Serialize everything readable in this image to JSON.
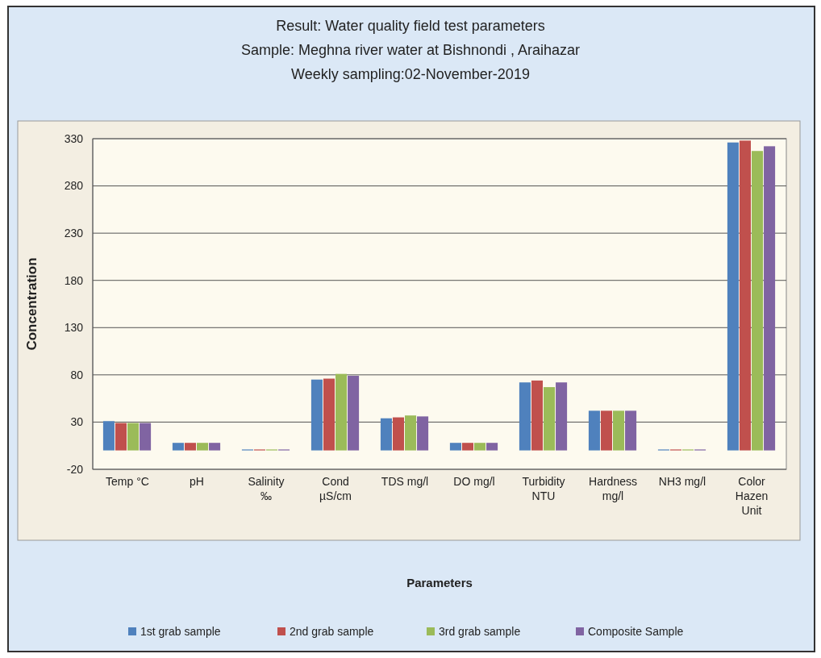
{
  "chart_data": {
    "type": "bar",
    "title": "Result: Water quality field test parameters",
    "subtitle": "Sample: Meghna river water at Bishnondi , Araihazar",
    "annotations": [
      "Weekly sampling:02-November-2019"
    ],
    "xlabel": "Parameters",
    "ylabel": "Concentration",
    "categories": [
      "Temp °C",
      "pH",
      "Salinity ‰",
      "Cond µS/cm",
      "TDS mg/l",
      "DO mg/l",
      "Turbidity NTU",
      "Hardness mg/l",
      "NH3 mg/l",
      "Color Hazen Unit"
    ],
    "series": [
      {
        "name": "1st grab sample",
        "color": "#4f81bd",
        "values": [
          31,
          8,
          1,
          75,
          34,
          8,
          72,
          42,
          1,
          326
        ]
      },
      {
        "name": "2nd grab sample",
        "color": "#c0504d",
        "values": [
          29,
          8,
          1,
          76,
          35,
          8,
          74,
          42,
          1,
          328
        ]
      },
      {
        "name": "3rd grab sample",
        "color": "#9bbb59",
        "values": [
          29,
          8,
          1,
          81,
          37,
          8,
          67,
          42,
          1,
          317
        ]
      },
      {
        "name": "Composite Sample",
        "color": "#8064a2",
        "values": [
          29,
          8,
          1,
          79,
          36,
          8,
          72,
          42,
          1,
          322
        ]
      }
    ],
    "ylim": [
      -20,
      330
    ],
    "yticks": [
      -20,
      30,
      80,
      130,
      180,
      230,
      280,
      330
    ],
    "grid": "y",
    "legend": "bottom"
  }
}
